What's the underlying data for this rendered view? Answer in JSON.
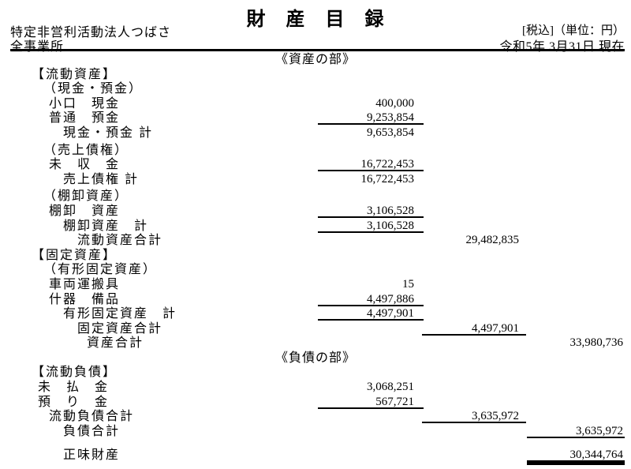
{
  "title": "財 産 目 録",
  "header": {
    "org_name": "特定非営利活動法人つばさ",
    "scope": "全事業所",
    "tax_note": "[税込]（単位：円）",
    "date": "令和5年 3月31日 現在"
  },
  "colors": {
    "text": "#000000",
    "background": "#ffffff",
    "rule": "#000000"
  },
  "rows": [
    {
      "type": "part",
      "label": "《資産の部》"
    },
    {
      "label": "【流動資産】",
      "indent": 1
    },
    {
      "label": "（現金・預金）",
      "indent": 3
    },
    {
      "label": "小口　現金",
      "indent": 4,
      "col": 1,
      "value": "400,000"
    },
    {
      "label": "普通　預金",
      "indent": 4,
      "col": 1,
      "value": "9,253,854",
      "underline": "single"
    },
    {
      "label": "現金・預金 計",
      "indent": 5,
      "col": 1,
      "value": "9,653,854"
    },
    {
      "label": "（売上債権）",
      "indent": 3,
      "gap": "sm"
    },
    {
      "label": "未　収　金",
      "indent": 4,
      "col": 1,
      "value": "16,722,453",
      "underline": "single"
    },
    {
      "label": "売上債権 計",
      "indent": 5,
      "col": 1,
      "value": "16,722,453"
    },
    {
      "label": "（棚卸資産）",
      "indent": 3,
      "gap": "sm"
    },
    {
      "label": "棚卸　資産",
      "indent": 4,
      "col": 1,
      "value": "3,106,528",
      "underline": "single"
    },
    {
      "label": "棚卸資産　計",
      "indent": 5,
      "col": 1,
      "value": "3,106,528",
      "underline": "single"
    },
    {
      "label": "流動資産合計",
      "indent": 6,
      "col": 2,
      "value": "29,482,835"
    },
    {
      "label": "【固定資産】",
      "indent": 1
    },
    {
      "label": "（有形固定資産）",
      "indent": 3
    },
    {
      "label": "車両運搬具",
      "indent": 4,
      "col": 1,
      "value": "15"
    },
    {
      "label": "什器　備品",
      "indent": 4,
      "col": 1,
      "value": "4,497,886",
      "underline": "single"
    },
    {
      "label": "有形固定資産　計",
      "indent": 5,
      "col": 1,
      "value": "4,497,901",
      "underline": "single"
    },
    {
      "label": "固定資産合計",
      "indent": 6,
      "col": 2,
      "value": "4,497,901",
      "underline": "single"
    },
    {
      "label": "資産合計",
      "indent": 7,
      "col": 3,
      "value": "33,980,736"
    },
    {
      "type": "part",
      "label": "《負債の部》"
    },
    {
      "label": "【流動負債】",
      "indent": 1
    },
    {
      "label": "未　払　金",
      "indent": 2,
      "col": 1,
      "value": "3,068,251"
    },
    {
      "label": "預　り　金",
      "indent": 2,
      "col": 1,
      "value": "567,721",
      "underline": "single"
    },
    {
      "label": "流動負債合計",
      "indent": 4,
      "col": 2,
      "value": "3,635,972",
      "underline": "single"
    },
    {
      "label": "負債合計",
      "indent": 5,
      "col": 3,
      "value": "3,635,972",
      "underline": "single"
    },
    {
      "label": "正味財産",
      "indent": 5,
      "col": 3,
      "value": "30,344,764",
      "underline": "double",
      "gap": "lg"
    }
  ]
}
